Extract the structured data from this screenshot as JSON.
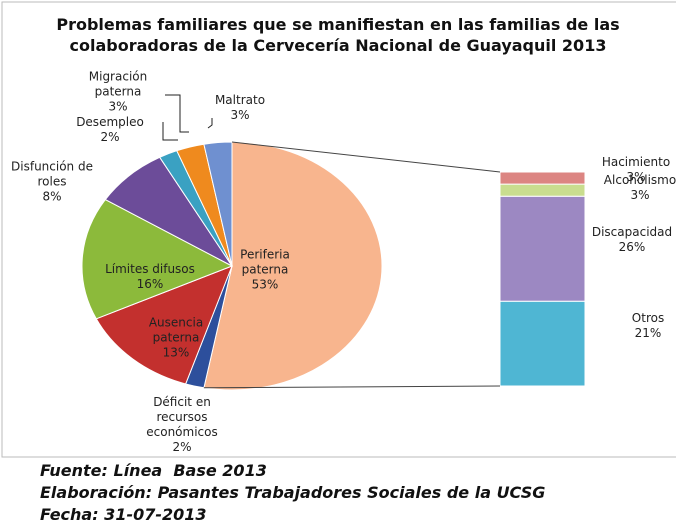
{
  "chart_data": {
    "type": "bar-of-pie",
    "title": "Problemas familiares que se manifiestan en las familias de las colaboradoras de la Cervecería Nacional de Guayaquil 2013",
    "categories": [
      "Periferia paterna",
      "Déficit en recursos económicos",
      "Ausencia paterna",
      "Límites difusos",
      "Disfunción de roles",
      "Desempleo",
      "Migración paterna",
      "Maltrato"
    ],
    "values": [
      53,
      2,
      13,
      16,
      8,
      2,
      3,
      3
    ],
    "value_labels": [
      "53%",
      "2%",
      "13%",
      "16%",
      "8%",
      "2%",
      "3%",
      "3%"
    ],
    "colors": [
      "#f8b58e",
      "#2d4f9c",
      "#c3302e",
      "#8cba3b",
      "#6c4c99",
      "#3aa1c2",
      "#ef8a1e",
      "#6f90d0"
    ],
    "bar_categories": [
      "Otros",
      "Discapacidad",
      "Alcoholismo",
      "Hacimiento"
    ],
    "bar_values": [
      21,
      26,
      3,
      3
    ],
    "bar_value_labels": [
      "21%",
      "26%",
      "3%",
      "3%"
    ],
    "bar_colors": [
      "#4fb6d3",
      "#9c88c2",
      "#c9dd8f",
      "#dc8582"
    ],
    "notes": [
      "Fuente: Línea  Base 2013",
      "Elaboración: Pasantes Trabajadores Sociales de la UCSG",
      "Fecha: 31-07-2013"
    ]
  }
}
